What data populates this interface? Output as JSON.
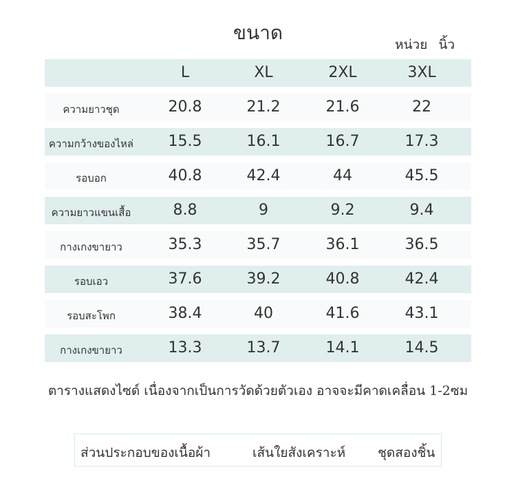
{
  "title": "ขนาด",
  "unit": "หน่วย นิ้ว",
  "sizes": [
    "L",
    "XL",
    "2XL",
    "3XL"
  ],
  "rows": [
    {
      "label": "ความยาวชุด",
      "values": [
        "20.8",
        "21.2",
        "21.6",
        "22"
      ]
    },
    {
      "label": "ความกว้างของไหล่",
      "values": [
        "15.5",
        "16.1",
        "16.7",
        "17.3"
      ]
    },
    {
      "label": "รอบอก",
      "values": [
        "40.8",
        "42.4",
        "44",
        "45.5"
      ]
    },
    {
      "label": "ความยาวแขนเสื้อ",
      "values": [
        "8.8",
        "9",
        "9.2",
        "9.4"
      ]
    },
    {
      "label": "กางเกงขายาว",
      "values": [
        "35.3",
        "35.7",
        "36.1",
        "36.5"
      ]
    },
    {
      "label": "รอบเอว",
      "values": [
        "37.6",
        "39.2",
        "40.8",
        "42.4"
      ]
    },
    {
      "label": "รอบสะโพก",
      "values": [
        "38.4",
        "40",
        "41.6",
        "43.1"
      ]
    },
    {
      "label": "กางเกงขายาว",
      "values": [
        "13.3",
        "13.7",
        "14.1",
        "14.5"
      ]
    }
  ],
  "note": "ตารางแสดงไซด์ เนื่องจากเป็นการวัดด้วยตัวเอง อาจจะมีคาดเคลื่อน 1-2ซม",
  "composition": {
    "label": "ส่วนประกอบของเนื้อผ้า",
    "material": "เส้นใยสังเคราะห์",
    "type": "ชุดสองชิ้น"
  },
  "colors": {
    "teal_row": "#e0eeee",
    "light_row": "#f8fafb",
    "text": "#333333"
  }
}
